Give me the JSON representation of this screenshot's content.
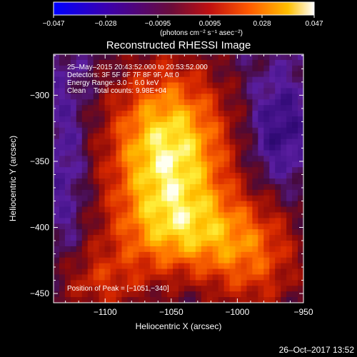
{
  "chart_data": {
    "type": "heatmap",
    "title": "Reconstructed RHESSI Image",
    "xlabel": "Heliocentric X (arcsec)",
    "ylabel": "Heliocentric Y (arcsec)",
    "xlim": [
      -1139,
      -950
    ],
    "ylim": [
      -457,
      -269
    ],
    "x_ticks": [
      -1100,
      -1050,
      -1000,
      -950
    ],
    "x_tick_labels": [
      "−1100",
      "−1050",
      "−1000",
      "−950"
    ],
    "y_ticks": [
      -300,
      -350,
      -400,
      -450
    ],
    "y_tick_labels": [
      "−300",
      "−350",
      "−400",
      "−450"
    ],
    "colorbar": {
      "range": [
        -0.047,
        0.047
      ],
      "tick_labels": [
        "−0.047",
        "−0.028",
        "−0.0095",
        "0.0095",
        "0.028",
        "0.047"
      ],
      "unit_label": "(photons cm⁻² s⁻¹ asec⁻²)"
    },
    "info_lines": [
      "25–May–2015 20:43:52.000 to 20:53:52.000",
      "Detectors: 3F 5F 6F 7F 8F 9F, Att 0",
      "Energy Range: 3.0 – 6.0 keV",
      "Clean    Total counts: 9.98E+04"
    ],
    "peak_label": "Position of Peak = [−1051,−340]",
    "peak": [
      -1051,
      -340
    ],
    "grid": false
  },
  "footer": {
    "timestamp": "26–Oct–2017 13:52"
  }
}
